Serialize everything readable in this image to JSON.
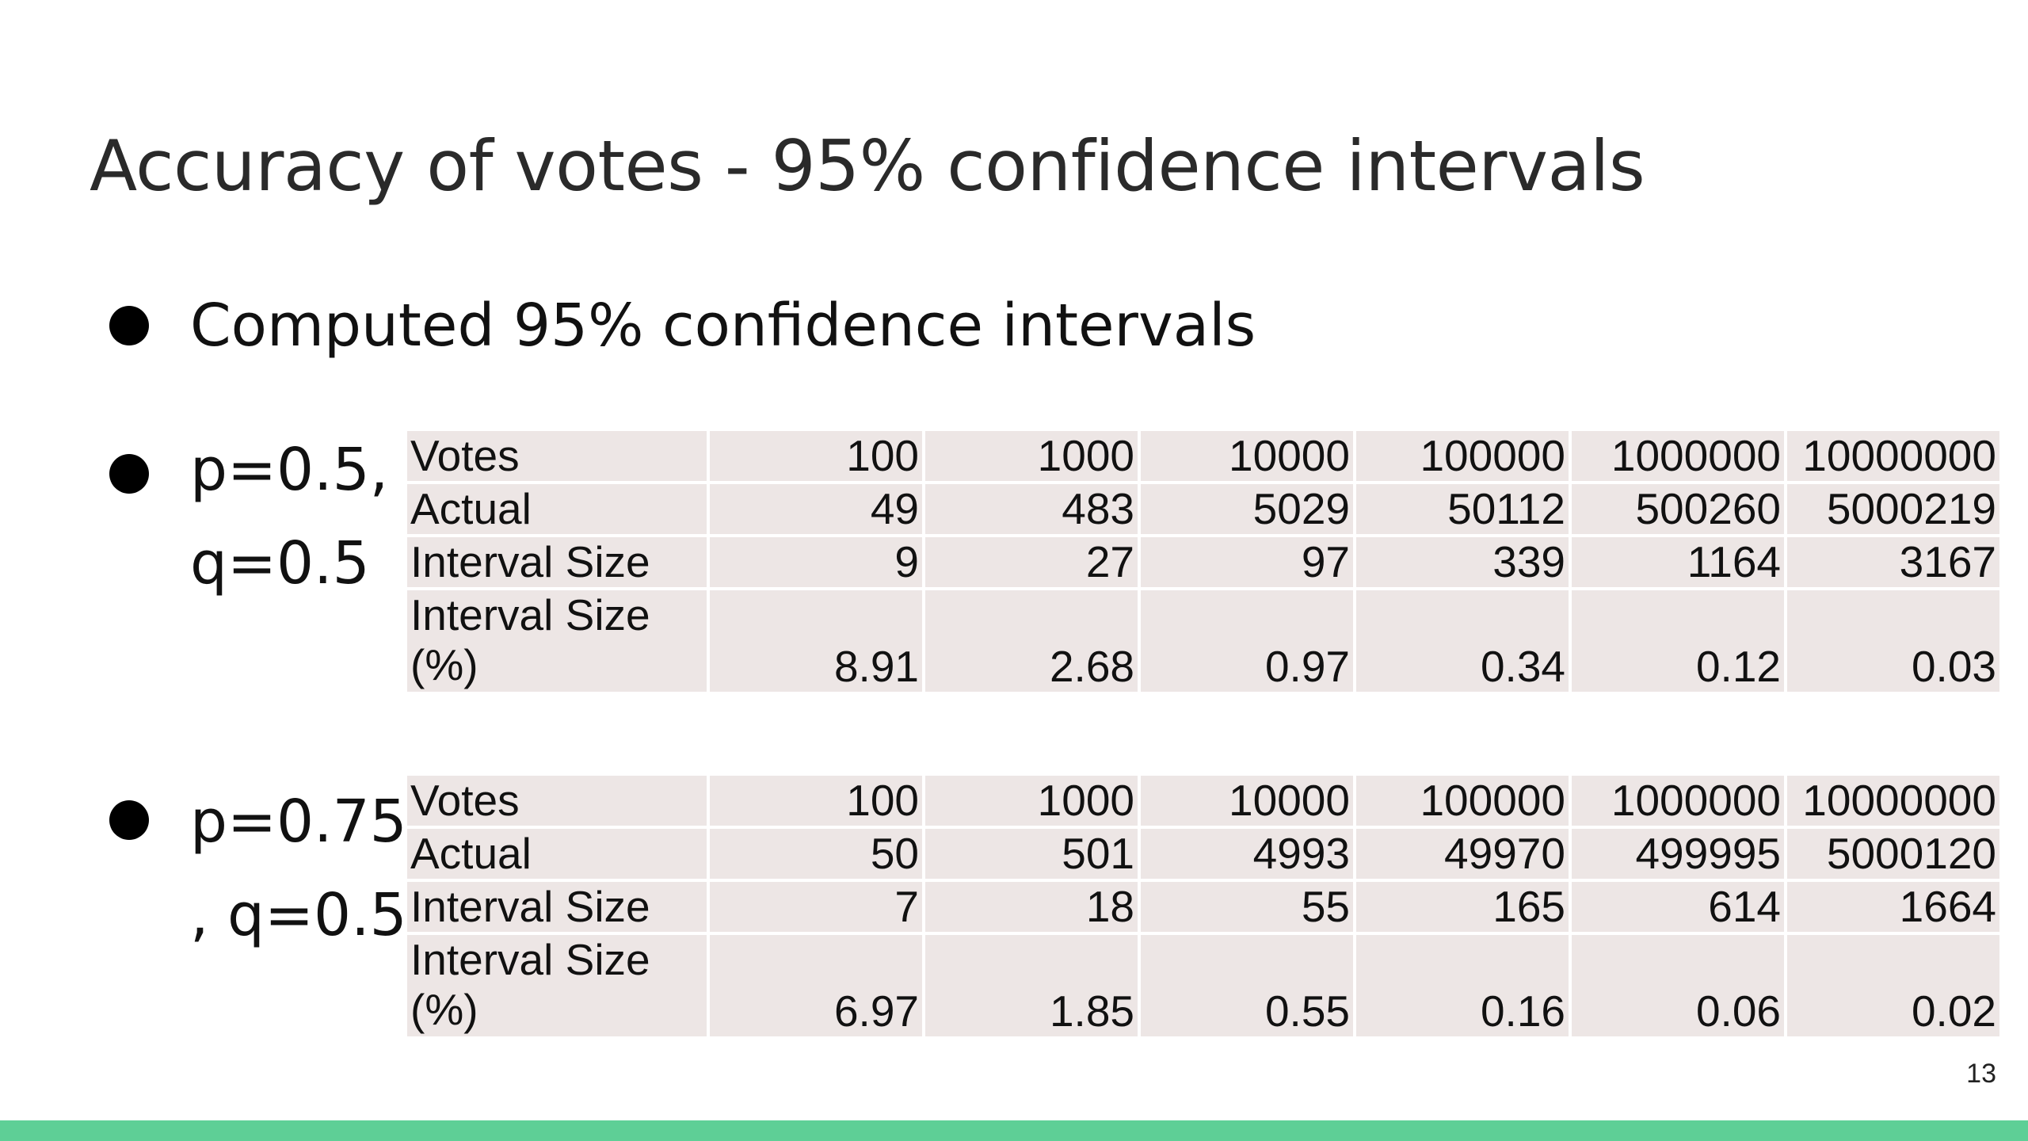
{
  "slide": {
    "title": "Accuracy of votes - 95% confidence intervals",
    "bullets": [
      {
        "text": "Computed 95% confidence intervals"
      },
      {
        "text": "p=0.5, q=0.5"
      },
      {
        "text": "p=0.75 , q=0.5"
      }
    ],
    "page_number": "13",
    "accent_color": "#5ecf96",
    "cell_background": "#ede6e5"
  },
  "table1": {
    "rows": [
      {
        "label": "Votes",
        "values": [
          "100",
          "1000",
          "10000",
          "100000",
          "1000000",
          "10000000"
        ]
      },
      {
        "label": "Actual",
        "values": [
          "49",
          "483",
          "5029",
          "50112",
          "500260",
          "5000219"
        ]
      },
      {
        "label": "Interval Size",
        "values": [
          "9",
          "27",
          "97",
          "339",
          "1164",
          "3167"
        ]
      },
      {
        "label": "Interval Size (%)",
        "values": [
          "8.91",
          "2.68",
          "0.97",
          "0.34",
          "0.12",
          "0.03"
        ]
      }
    ]
  },
  "table2": {
    "rows": [
      {
        "label": "Votes",
        "values": [
          "100",
          "1000",
          "10000",
          "100000",
          "1000000",
          "10000000"
        ]
      },
      {
        "label": "Actual",
        "values": [
          "50",
          "501",
          "4993",
          "49970",
          "499995",
          "5000120"
        ]
      },
      {
        "label": "Interval Size",
        "values": [
          "7",
          "18",
          "55",
          "165",
          "614",
          "1664"
        ]
      },
      {
        "label": "Interval Size (%)",
        "values": [
          "6.97",
          "1.85",
          "0.55",
          "0.16",
          "0.06",
          "0.02"
        ]
      }
    ]
  }
}
